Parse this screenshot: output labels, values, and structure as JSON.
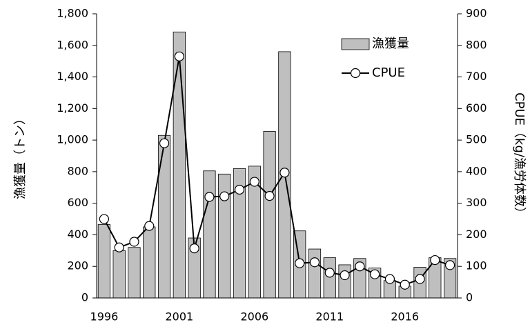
{
  "chart_data": {
    "type": "bar",
    "categories": [
      1996,
      null,
      null,
      null,
      null,
      2001,
      null,
      null,
      null,
      null,
      2006,
      null,
      null,
      null,
      null,
      2011,
      null,
      null,
      null,
      null,
      2016,
      null,
      null,
      null
    ],
    "series": [
      {
        "name": "漁獲量",
        "type": "bar",
        "color": "#bfbfbf",
        "values": [
          465,
          300,
          320,
          450,
          1030,
          1685,
          380,
          805,
          785,
          820,
          835,
          1055,
          1560,
          425,
          310,
          255,
          210,
          250,
          190,
          110,
          75,
          195,
          255,
          250
        ]
      },
      {
        "name": "CPUE",
        "type": "line",
        "axis": "y2",
        "color": "#000000",
        "values": [
          250,
          160,
          178,
          228,
          490,
          765,
          157,
          320,
          322,
          343,
          368,
          323,
          397,
          110,
          113,
          80,
          72,
          100,
          75,
          60,
          42,
          60,
          120,
          104
        ]
      }
    ],
    "ylabel": "漁獲量（トン）",
    "y2label": "CPUE（kg/漁労体数）",
    "ylim": [
      0,
      1800
    ],
    "yticks": [
      0,
      200,
      400,
      600,
      800,
      {
        "value": 1000,
        "label": "1,000"
      },
      {
        "value": 1200,
        "label": "1,200"
      },
      {
        "value": 1400,
        "label": "1,400"
      },
      {
        "value": 1600,
        "label": "1,600"
      },
      {
        "value": 1800,
        "label": "1,800"
      }
    ],
    "y2lim": [
      0,
      900
    ],
    "y2ticks": [
      0,
      100,
      200,
      300,
      400,
      500,
      600,
      700,
      800,
      900
    ],
    "legend": "top-right"
  }
}
